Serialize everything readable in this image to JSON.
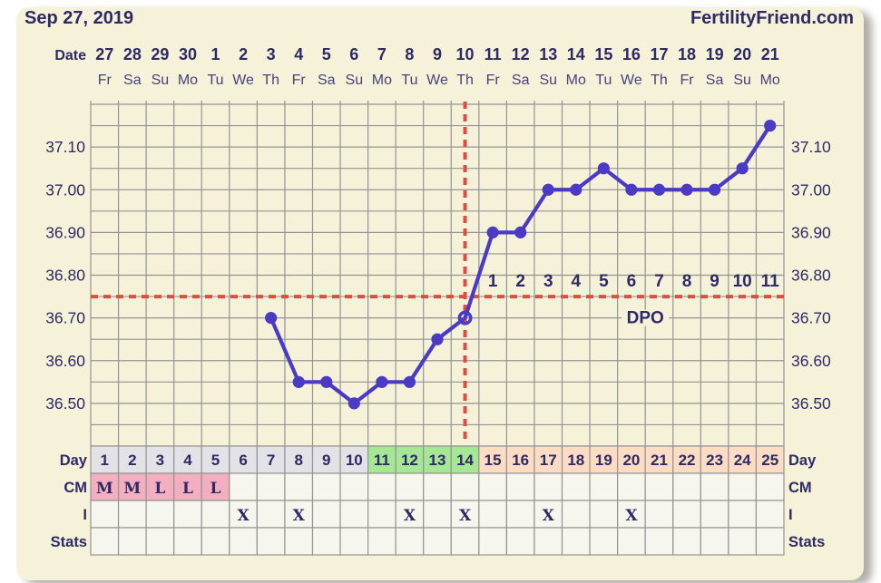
{
  "header": {
    "date_title": "Sep 27, 2019",
    "brand": "FertilityFriend.com"
  },
  "colors": {
    "card_bg": "#f6f1d9",
    "navy": "#2e2a66",
    "weekday_text": "#46437c",
    "line_blue": "#4a3ac4",
    "red_dash": "#dc4d42",
    "grid": "#949494",
    "cell_gray": "#e3e2e6",
    "cell_green": "#a6e795",
    "cell_peach": "#fcdcc3",
    "cell_pink": "#f3aebf",
    "cell_empty": "#f6f6ee"
  },
  "chart_data": {
    "type": "line",
    "title": "Basal body temperature cycle chart",
    "x_axis_label": "Date",
    "dates": [
      "27",
      "28",
      "29",
      "30",
      "1",
      "2",
      "3",
      "4",
      "5",
      "6",
      "7",
      "8",
      "9",
      "10",
      "11",
      "12",
      "13",
      "14",
      "15",
      "16",
      "17",
      "18",
      "19",
      "20",
      "21"
    ],
    "weekdays": [
      "Fr",
      "Sa",
      "Su",
      "Mo",
      "Tu",
      "We",
      "Th",
      "Fr",
      "Sa",
      "Su",
      "Mo",
      "Tu",
      "We",
      "Th",
      "Fr",
      "Sa",
      "Su",
      "Mo",
      "Tu",
      "We",
      "Th",
      "Fr",
      "Sa",
      "Su",
      "Mo"
    ],
    "cycle_days": [
      1,
      2,
      3,
      4,
      5,
      6,
      7,
      8,
      9,
      10,
      11,
      12,
      13,
      14,
      15,
      16,
      17,
      18,
      19,
      20,
      21,
      22,
      23,
      24,
      25
    ],
    "temps": [
      null,
      null,
      null,
      null,
      null,
      null,
      36.7,
      36.55,
      36.55,
      36.5,
      36.55,
      36.55,
      36.65,
      36.7,
      36.9,
      36.9,
      37.0,
      37.0,
      37.05,
      37.0,
      37.0,
      37.0,
      37.0,
      37.05,
      37.15
    ],
    "open_point_day": 14,
    "ylim": [
      36.4,
      37.2
    ],
    "y_tick_labels": [
      "37.10",
      "37.00",
      "36.90",
      "36.80",
      "36.70",
      "36.60",
      "36.50"
    ],
    "coverline_temp": 36.75,
    "ovulation_day": 14,
    "dpo": {
      "start_day": 15,
      "labels": [
        "1",
        "2",
        "3",
        "4",
        "5",
        "6",
        "7",
        "8",
        "9",
        "10",
        "11"
      ],
      "axis_label": "DPO"
    },
    "grid_on": true
  },
  "table": {
    "row_labels": [
      "Day",
      "CM",
      "I",
      "Stats"
    ],
    "day_numbers": [
      "1",
      "2",
      "3",
      "4",
      "5",
      "6",
      "7",
      "8",
      "9",
      "10",
      "11",
      "12",
      "13",
      "14",
      "15",
      "16",
      "17",
      "18",
      "19",
      "20",
      "21",
      "22",
      "23",
      "24",
      "25"
    ],
    "day_phases": [
      "gray",
      "gray",
      "gray",
      "gray",
      "gray",
      "gray",
      "gray",
      "gray",
      "gray",
      "gray",
      "green",
      "green",
      "green",
      "green",
      "peach",
      "peach",
      "peach",
      "peach",
      "peach",
      "peach",
      "peach",
      "peach",
      "peach",
      "peach",
      "peach"
    ],
    "cm_values": [
      "M",
      "M",
      "L",
      "L",
      "L",
      "",
      "",
      "",
      "",
      "",
      "",
      "",
      "",
      "",
      "",
      "",
      "",
      "",
      "",
      "",
      "",
      "",
      "",
      "",
      ""
    ],
    "intercourse_days": [
      6,
      8,
      12,
      14,
      17,
      20
    ],
    "intercourse_marker": "X"
  }
}
